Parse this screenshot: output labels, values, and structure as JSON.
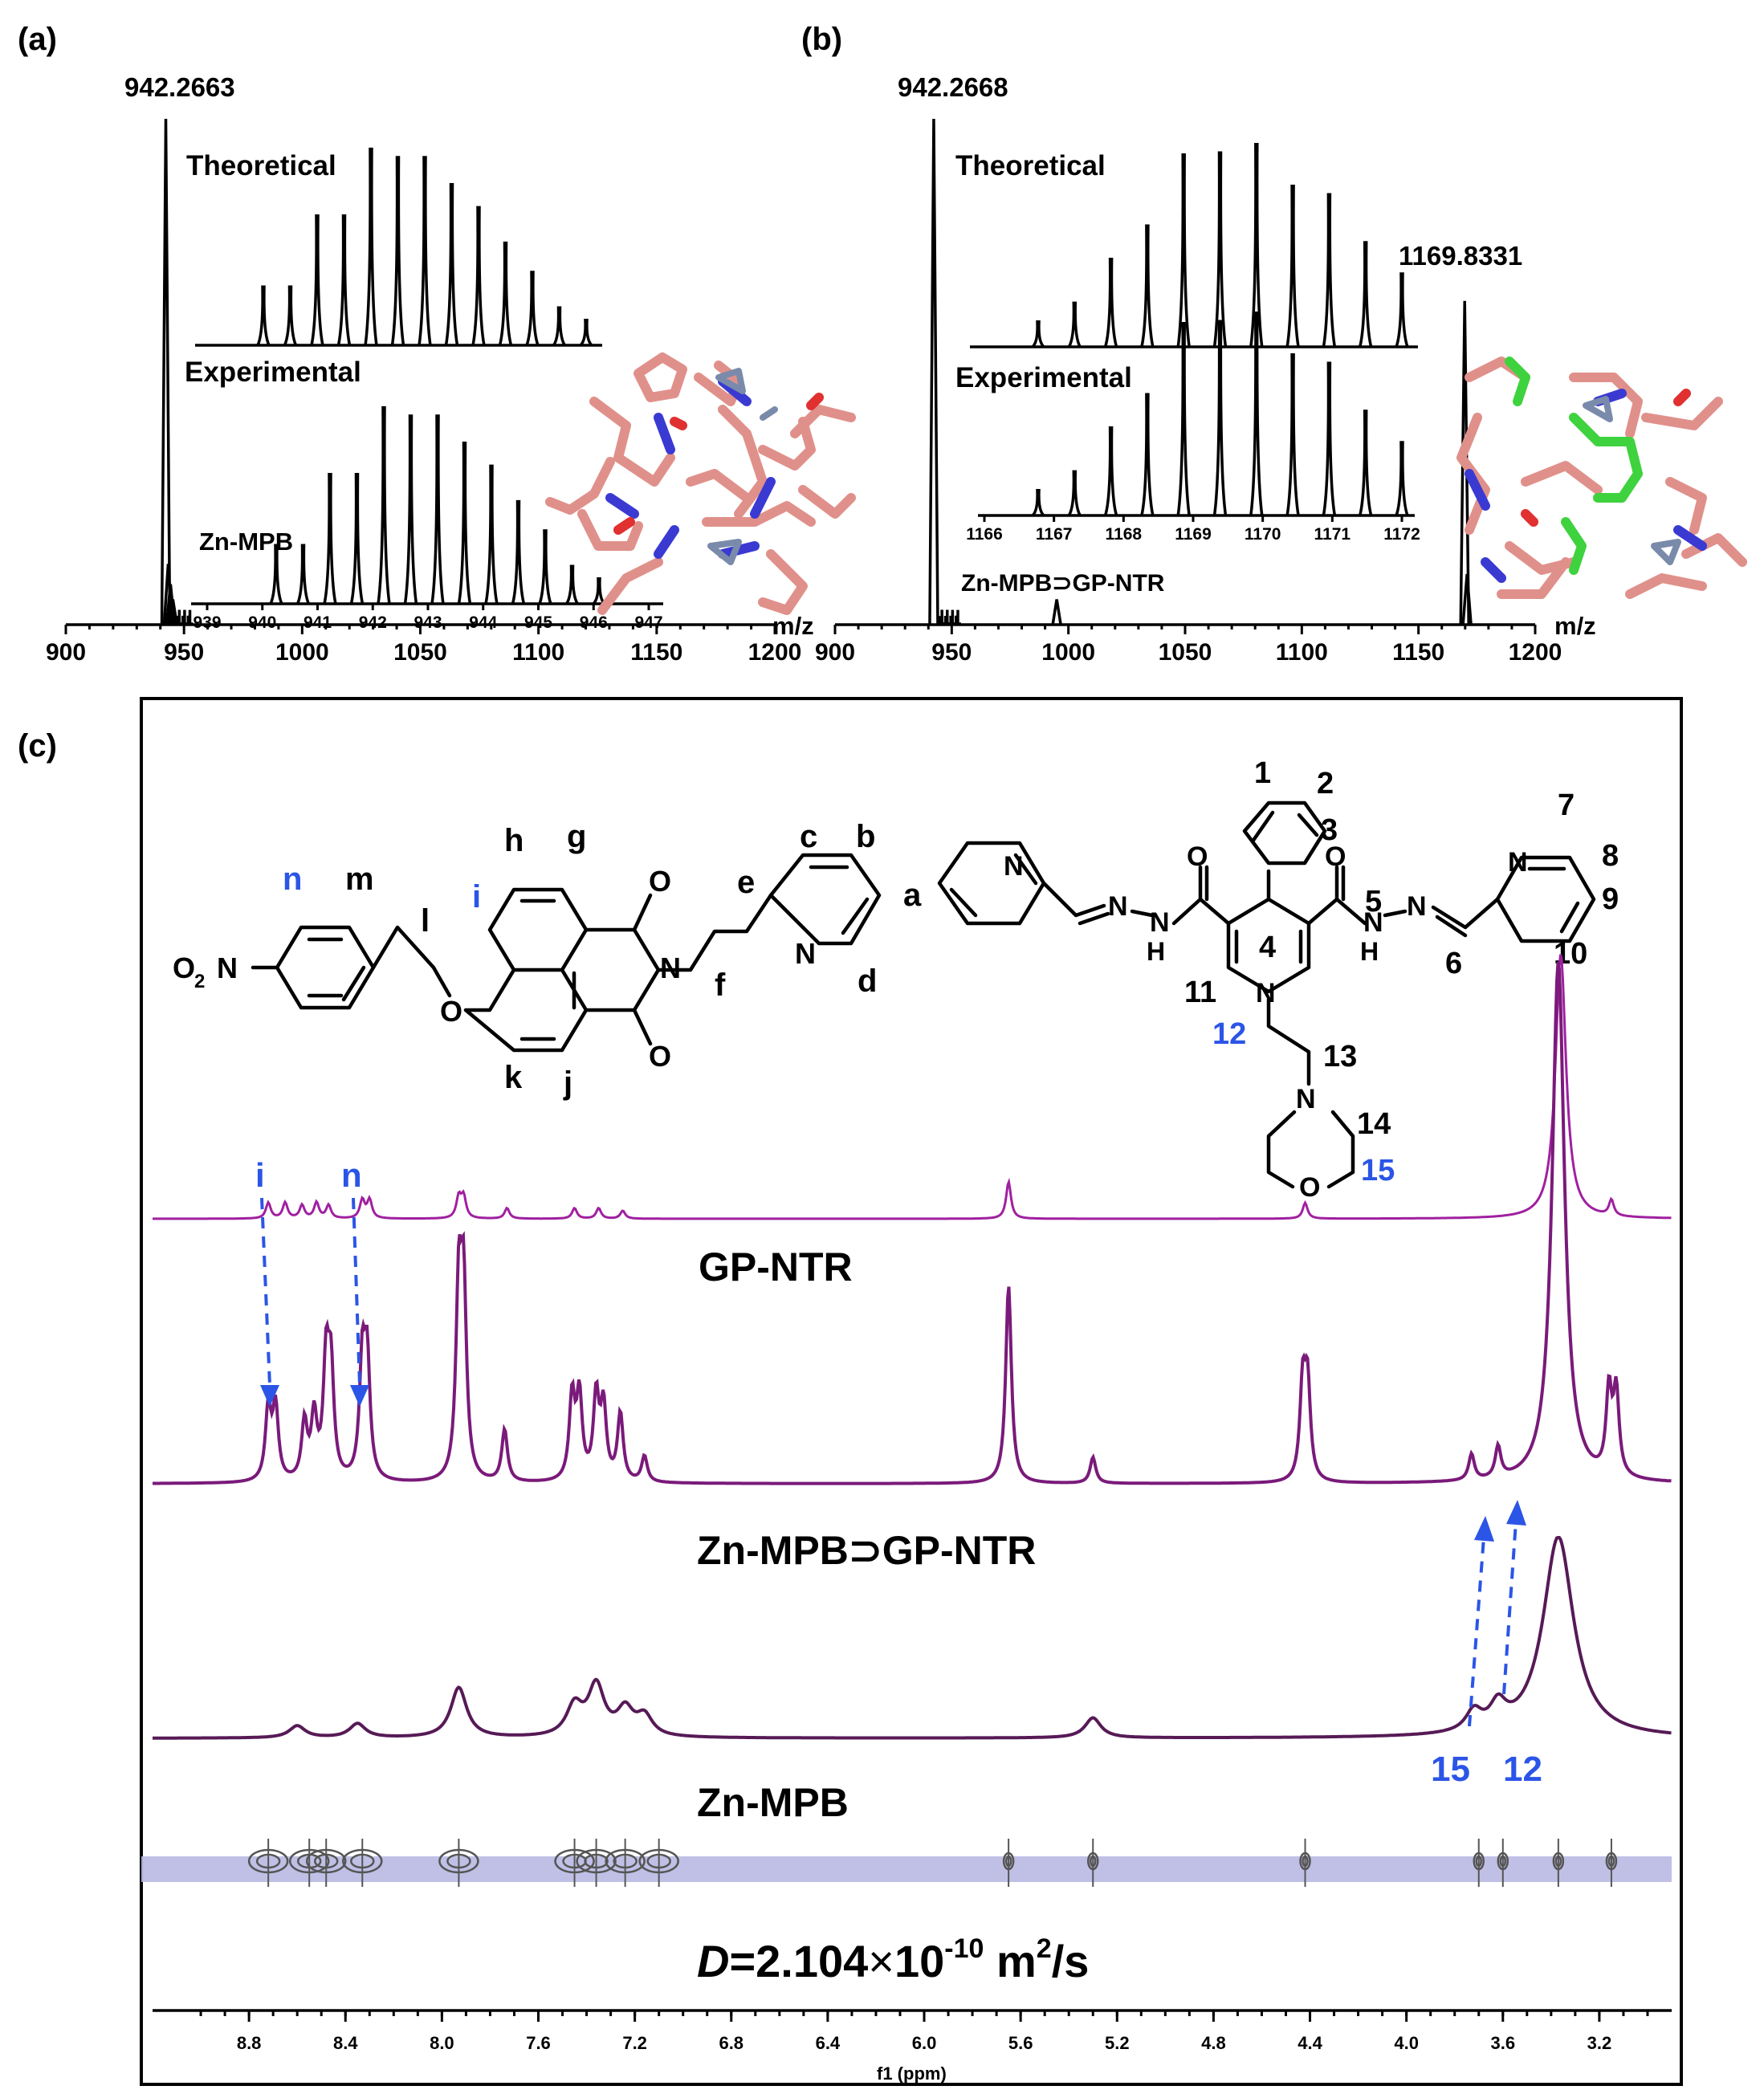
{
  "panels": {
    "a": {
      "label": "(a)"
    },
    "b": {
      "label": "(b)"
    },
    "c": {
      "label": "(c)"
    }
  },
  "chart_data": [
    {
      "type": "line",
      "id": "ms-a",
      "annotations": {
        "main_peak": "942.2663",
        "theoretical": "Theoretical",
        "experimental": "Experimental",
        "species": "Zn-MPB"
      },
      "xlabel": "m/z",
      "xlim": [
        900,
        1200
      ],
      "xticks": [
        "900",
        "950",
        "1000",
        "1050",
        "1100",
        "1150",
        "1200"
      ],
      "main_peaks": [
        {
          "x": 942.3,
          "y": 1.0
        },
        {
          "x": 943.3,
          "y": 0.12
        },
        {
          "x": 944.3,
          "y": 0.08
        },
        {
          "x": 945.3,
          "y": 0.05
        }
      ],
      "inset_ticks": [
        "939",
        "940",
        "941",
        "942",
        "943",
        "944",
        "945",
        "946",
        "947"
      ],
      "theoretical_isotope": [
        0.28,
        0.28,
        0.62,
        0.62,
        0.94,
        0.9,
        0.9,
        0.77,
        0.66,
        0.49,
        0.35,
        0.18,
        0.12
      ],
      "experimental_isotope": [
        0.28,
        0.28,
        0.62,
        0.62,
        0.94,
        0.9,
        0.9,
        0.77,
        0.66,
        0.49,
        0.35,
        0.18,
        0.12
      ]
    },
    {
      "type": "line",
      "id": "ms-b",
      "annotations": {
        "main_peak": "942.2668",
        "second_peak": "1169.8331",
        "theoretical": "Theoretical",
        "experimental": "Experimental",
        "species": "Zn-MPB⊃GP-NTR"
      },
      "xlabel": "m/z",
      "xlim": [
        900,
        1200
      ],
      "xticks": [
        "900",
        "950",
        "1000",
        "1050",
        "1100",
        "1150",
        "1200"
      ],
      "main_peaks": [
        {
          "x": 942.3,
          "y": 1.0
        },
        {
          "x": 995.0,
          "y": 0.05
        },
        {
          "x": 1169.8,
          "y": 0.64
        },
        {
          "x": 1170.8,
          "y": 0.1
        }
      ],
      "inset_ticks": [
        "1166",
        "1167",
        "1168",
        "1169",
        "1170",
        "1171",
        "1172"
      ],
      "theoretical_isotope": [
        0.12,
        0.21,
        0.42,
        0.58,
        0.92,
        0.93,
        0.97,
        0.77,
        0.73,
        0.5,
        0.35
      ],
      "experimental_isotope": [
        0.12,
        0.21,
        0.42,
        0.58,
        0.92,
        0.93,
        0.97,
        0.77,
        0.73,
        0.5,
        0.35
      ]
    },
    {
      "type": "line",
      "id": "nmr-c",
      "xlabel": "f1 (ppm)",
      "xlim": [
        9.2,
        2.9
      ],
      "xticks": [
        "8.8",
        "8.4",
        "8.0",
        "7.6",
        "7.2",
        "6.8",
        "6.4",
        "6.0",
        "5.6",
        "5.2",
        "4.8",
        "4.4",
        "4.0",
        "3.6",
        "3.2"
      ],
      "series": [
        {
          "name": "GP-NTR",
          "color": "#a020a0",
          "peaks": [
            [
              8.72,
              0.06
            ],
            [
              8.65,
              0.06
            ],
            [
              8.58,
              0.05
            ],
            [
              8.52,
              0.06
            ],
            [
              8.47,
              0.05
            ],
            [
              8.33,
              0.07
            ],
            [
              8.3,
              0.07
            ],
            [
              7.93,
              0.08
            ],
            [
              7.91,
              0.08
            ],
            [
              7.73,
              0.04
            ],
            [
              7.45,
              0.04
            ],
            [
              7.35,
              0.04
            ],
            [
              7.25,
              0.03
            ],
            [
              5.65,
              0.14
            ],
            [
              4.42,
              0.06
            ],
            [
              3.36,
              1.0
            ],
            [
              3.15,
              0.06
            ]
          ]
        },
        {
          "name": "Zn-MPB⊃GP-NTR",
          "color": "#7a1a7a",
          "peaks": [
            [
              8.72,
              0.14
            ],
            [
              8.69,
              0.14
            ],
            [
              8.57,
              0.11
            ],
            [
              8.53,
              0.12
            ],
            [
              8.48,
              0.22
            ],
            [
              8.46,
              0.2
            ],
            [
              8.33,
              0.22
            ],
            [
              8.31,
              0.22
            ],
            [
              7.93,
              0.35
            ],
            [
              7.91,
              0.35
            ],
            [
              7.74,
              0.1
            ],
            [
              7.46,
              0.16
            ],
            [
              7.43,
              0.16
            ],
            [
              7.36,
              0.16
            ],
            [
              7.33,
              0.14
            ],
            [
              7.26,
              0.13
            ],
            [
              7.16,
              0.05
            ],
            [
              5.65,
              0.38
            ],
            [
              5.3,
              0.05
            ],
            [
              4.43,
              0.18
            ],
            [
              4.41,
              0.18
            ],
            [
              3.73,
              0.05
            ],
            [
              3.62,
              0.06
            ],
            [
              3.37,
              1.0
            ],
            [
              3.16,
              0.16
            ],
            [
              3.13,
              0.16
            ]
          ]
        },
        {
          "name": "Zn-MPB",
          "color": "#561a56",
          "peaks": [
            [
              8.6,
              0.06
            ],
            [
              8.35,
              0.07
            ],
            [
              7.93,
              0.25
            ],
            [
              7.45,
              0.15
            ],
            [
              7.36,
              0.25
            ],
            [
              7.24,
              0.13
            ],
            [
              7.16,
              0.1
            ],
            [
              5.3,
              0.1
            ],
            [
              3.72,
              0.1
            ],
            [
              3.62,
              0.12
            ],
            [
              3.37,
              1.0
            ]
          ]
        }
      ],
      "peak_labels": {
        "i": "i",
        "n": "n",
        "p15": "15",
        "p12": "12"
      },
      "diffusion": {
        "prefix": "D",
        "value": "=2.104",
        "times": "×",
        "base": "10",
        "exp": "-10",
        "unit": " m",
        "unit_exp": "2",
        "unit_tail": "/s"
      },
      "dosy_band_color": "#b9b9e3"
    }
  ],
  "guest_structure": {
    "labels": {
      "n": "n",
      "m": "m",
      "l": "l",
      "i": "i",
      "h": "h",
      "g": "g",
      "k": "k",
      "j": "j",
      "e": "e",
      "f": "f",
      "c": "c",
      "b": "b",
      "a": "a",
      "d": "d"
    },
    "atoms": {
      "no2": "O",
      "no2_sub": "2",
      "no2_n": "N",
      "o_ether": "O",
      "o1": "O",
      "o2": "O",
      "n_imide": "N",
      "n_py": "N"
    }
  },
  "host_structure": {
    "labels": {
      "1": "1",
      "2": "2",
      "3": "3",
      "4": "4",
      "5": "5",
      "6": "6",
      "7": "7",
      "8": "8",
      "9": "9",
      "10": "10",
      "11": "11",
      "12": "12",
      "13": "13",
      "14": "14",
      "15": "15"
    },
    "atoms": {
      "n": "N",
      "h": "H",
      "o": "O"
    }
  }
}
